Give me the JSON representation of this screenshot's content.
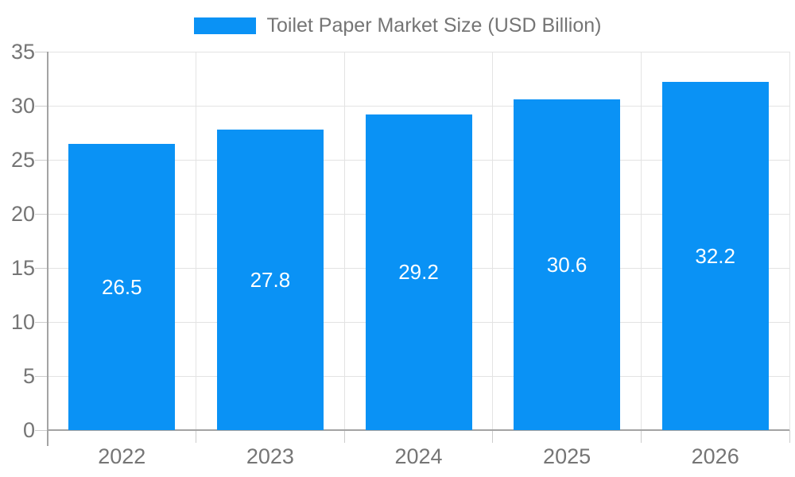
{
  "legend": {
    "label": "Toilet Paper Market Size (USD Billion)"
  },
  "chart_data": {
    "type": "bar",
    "title": "Toilet Paper Market Size (USD Billion)",
    "categories": [
      "2022",
      "2023",
      "2024",
      "2025",
      "2026"
    ],
    "values": [
      26.5,
      27.8,
      29.2,
      30.6,
      32.2
    ],
    "value_labels": [
      "26.5",
      "27.8",
      "29.2",
      "30.6",
      "32.2"
    ],
    "xlabel": "",
    "ylabel": "",
    "ylim": [
      0,
      35
    ],
    "yticks": [
      0,
      5,
      10,
      15,
      20,
      25,
      30,
      35
    ],
    "grid": true,
    "legend_position": "top-center",
    "colors": {
      "bar": "#0A92F5",
      "value_text": "#FFFFFF",
      "axis_text": "#757575",
      "gridline": "#E3E3E3",
      "axis_line": "#A3A3A3",
      "tick": "#CCCCCC",
      "background": "#FFFFFF"
    }
  }
}
